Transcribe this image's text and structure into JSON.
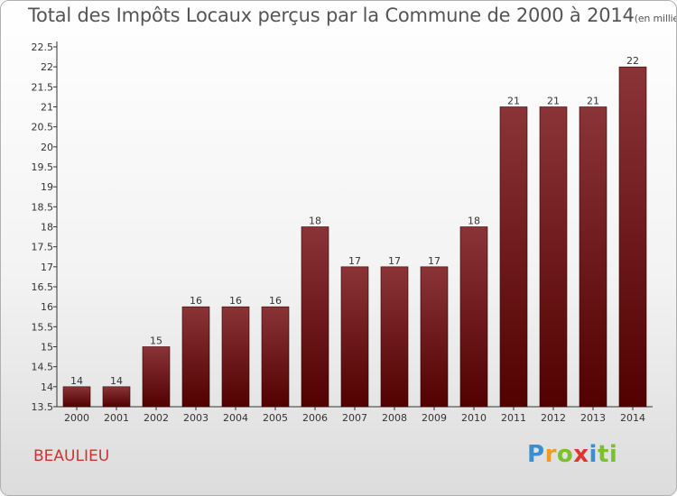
{
  "header": {
    "title": "Total des Impôts Locaux perçus par la Commune de 2000 à 2014",
    "unit": "(en milliers d'€)"
  },
  "footer": {
    "commune": "BEAULIEU",
    "logo": [
      "P",
      "r",
      "o",
      "x",
      "i",
      "ti"
    ]
  },
  "colors": {
    "bar_top": "#8a3438",
    "bar_bottom": "#520000",
    "title": "#555555",
    "commune": "#cc3333"
  },
  "chart_data": {
    "type": "bar",
    "categories": [
      "2000",
      "2001",
      "2002",
      "2003",
      "2004",
      "2005",
      "2006",
      "2007",
      "2008",
      "2009",
      "2010",
      "2011",
      "2012",
      "2013",
      "2014"
    ],
    "values": [
      14,
      14,
      15,
      16,
      16,
      16,
      18,
      17,
      17,
      17,
      18,
      21,
      21,
      21,
      22
    ],
    "data_labels": [
      "14",
      "14",
      "15",
      "16",
      "16",
      "16",
      "18",
      "17",
      "17",
      "17",
      "18",
      "21",
      "21",
      "21",
      "22"
    ],
    "yticks": [
      "13.5",
      "14",
      "14.5",
      "15",
      "15.5",
      "16",
      "16.5",
      "17",
      "17.5",
      "18",
      "18.5",
      "19",
      "19.5",
      "20",
      "20.5",
      "21",
      "21.5",
      "22",
      "22.5"
    ],
    "ylim": [
      13.5,
      22.5
    ],
    "grid": false,
    "legend": "none"
  }
}
